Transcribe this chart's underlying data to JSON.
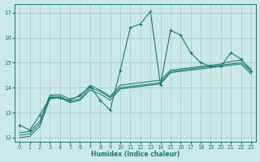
{
  "xlabel": "Humidex (Indice chaleur)",
  "xlim": [
    -0.5,
    23.5
  ],
  "ylim": [
    11.85,
    17.35
  ],
  "yticks": [
    12,
    13,
    14,
    15,
    16,
    17
  ],
  "xticks": [
    0,
    1,
    2,
    3,
    4,
    5,
    6,
    7,
    8,
    9,
    10,
    11,
    12,
    13,
    14,
    15,
    16,
    17,
    18,
    19,
    20,
    21,
    22,
    23
  ],
  "background_color": "#cce9e9",
  "grid_color": "#aacccc",
  "line_color": "#1a7a6e",
  "series": [
    {
      "x": [
        0,
        1,
        2,
        3,
        4,
        5,
        6,
        7,
        8,
        9,
        10,
        11,
        12,
        13,
        14,
        15,
        16,
        17,
        18,
        19,
        20,
        21,
        22,
        23
      ],
      "y": [
        12.5,
        12.3,
        12.9,
        13.6,
        13.6,
        13.5,
        13.7,
        14.05,
        13.5,
        13.1,
        14.7,
        16.4,
        16.55,
        17.05,
        14.1,
        16.3,
        16.1,
        15.4,
        15.0,
        14.85,
        14.85,
        15.4,
        15.15,
        14.65
      ],
      "markers": true
    },
    {
      "x": [
        0,
        1,
        2,
        3,
        4,
        5,
        6,
        7,
        8,
        9,
        10,
        11,
        12,
        13,
        14,
        15,
        16,
        17,
        18,
        19,
        20,
        21,
        22,
        23
      ],
      "y": [
        12.1,
        12.15,
        12.55,
        13.65,
        13.65,
        13.45,
        13.55,
        14.0,
        13.85,
        13.6,
        14.0,
        14.05,
        14.1,
        14.15,
        14.2,
        14.65,
        14.7,
        14.75,
        14.8,
        14.85,
        14.9,
        14.95,
        15.0,
        14.65
      ],
      "markers": false
    },
    {
      "x": [
        0,
        1,
        2,
        3,
        4,
        5,
        6,
        7,
        8,
        9,
        10,
        11,
        12,
        13,
        14,
        15,
        16,
        17,
        18,
        19,
        20,
        21,
        22,
        23
      ],
      "y": [
        12.2,
        12.25,
        12.65,
        13.7,
        13.72,
        13.55,
        13.65,
        14.1,
        13.9,
        13.65,
        14.1,
        14.15,
        14.2,
        14.25,
        14.3,
        14.7,
        14.75,
        14.8,
        14.85,
        14.9,
        14.95,
        15.05,
        15.1,
        14.75
      ],
      "markers": false
    },
    {
      "x": [
        0,
        1,
        2,
        3,
        4,
        5,
        6,
        7,
        8,
        9,
        10,
        11,
        12,
        13,
        14,
        15,
        16,
        17,
        18,
        19,
        20,
        21,
        22,
        23
      ],
      "y": [
        12.0,
        12.05,
        12.45,
        13.55,
        13.6,
        13.4,
        13.5,
        13.9,
        13.75,
        13.5,
        13.95,
        14.0,
        14.05,
        14.1,
        14.15,
        14.6,
        14.65,
        14.7,
        14.75,
        14.8,
        14.85,
        14.9,
        14.95,
        14.55
      ],
      "markers": false
    }
  ]
}
